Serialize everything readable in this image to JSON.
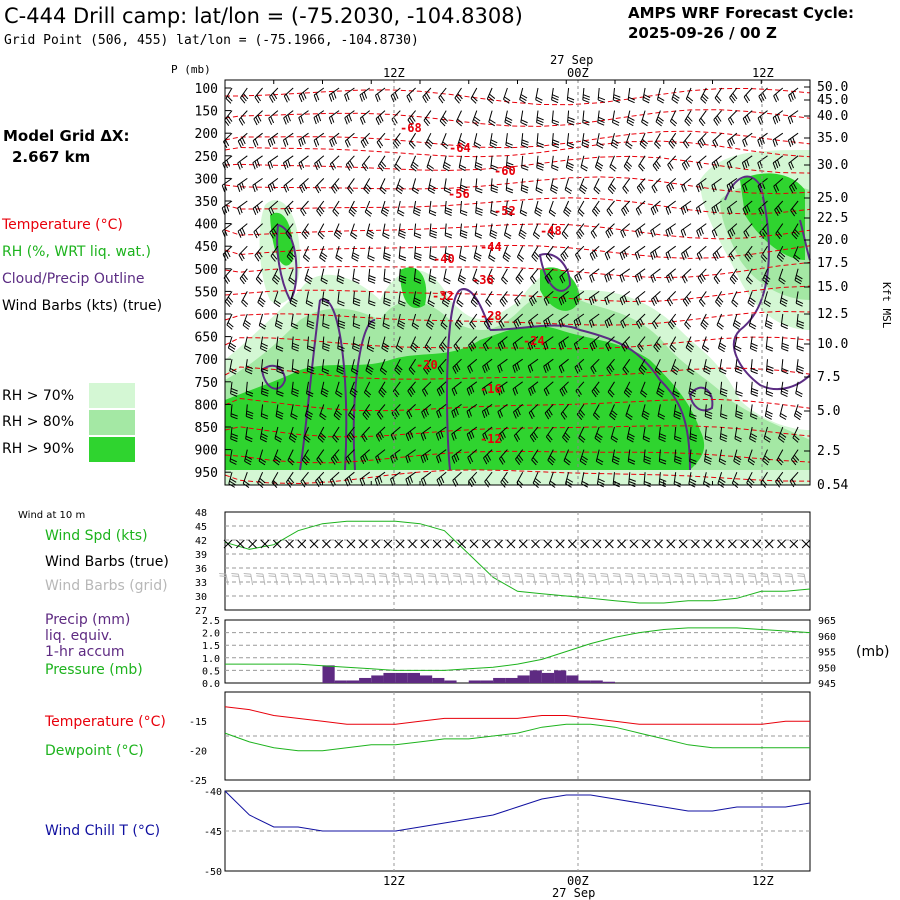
{
  "header": {
    "title": "C-444 Drill camp:  lat/lon = (-75.2030, -104.8308)",
    "subtitle": "Grid Point (506, 455) lat/lon = (-75.1966, -104.8730)",
    "cycle_line1": "AMPS WRF Forecast Cycle:",
    "cycle_line2": "2025-09-26 / 00  Z"
  },
  "left": {
    "grid_label": "Model Grid ΔX:",
    "grid_value": "2.667 km",
    "temperature": "Temperature (°C)",
    "rh": "RH (%, WRT liq. wat.)",
    "cloud": "Cloud/Precip Outline",
    "wind_barbs": "Wind Barbs (kts) (true)",
    "rh70": "RH > 70%",
    "rh80": "RH > 80%",
    "rh90": "RH > 90%",
    "wind10": "Wind at 10 m",
    "wind_spd": "Wind Spd (kts)",
    "barbs_true": "Wind Barbs (true)",
    "barbs_grid": "Wind Barbs (grid)",
    "precip1": "Precip (mm)",
    "precip2": "liq. equiv.",
    "precip3": "1-hr accum",
    "pressure": "Pressure (mb)",
    "temp2": "Temperature (°C)",
    "dewpoint": "Dewpoint (°C)",
    "windchill": "Wind Chill T (°C)"
  },
  "colors": {
    "temp": "#e8000b",
    "rh": "#1db31d",
    "cloud": "#5b2c83",
    "rh70": "#d4f7d4",
    "rh80": "#a4e8a4",
    "rh90": "#2fd42f",
    "windchill": "#1010a0",
    "precip": "#5e2a82"
  },
  "time_axis": {
    "ticks": [
      "12Z",
      "00Z",
      "12Z"
    ],
    "date_top": "27  Sep",
    "date_bottom": "27  Sep"
  },
  "chart_data": [
    {
      "type": "heatmap",
      "name": "Cross-section",
      "y_axis_label": "P (mb)",
      "pressure_levels": [
        "100",
        "150",
        "200",
        "250",
        "300",
        "350",
        "400",
        "450",
        "500",
        "550",
        "600",
        "650",
        "700",
        "750",
        "800",
        "850",
        "900",
        "950"
      ],
      "right_axis_label": "Kft MSL",
      "height_ticks": [
        "50.0",
        "45.0",
        "40.0",
        "35.0",
        "30.0",
        "25.0",
        "22.5",
        "20.0",
        "17.5",
        "15.0",
        "12.5",
        "10.0",
        "7.5",
        "5.0",
        "2.5",
        "0.54"
      ],
      "temperature_contours": [
        {
          "label": "-68",
          "p": "~190 mb"
        },
        {
          "label": "-64",
          "p": "~240 mb"
        },
        {
          "label": "-60",
          "p": "~285 mb"
        },
        {
          "label": "-56",
          "p": "~330 mb"
        },
        {
          "label": "-52",
          "p": "~360 mb"
        },
        {
          "label": "-48",
          "p": "~410 mb"
        },
        {
          "label": "-44",
          "p": "~435 mb"
        },
        {
          "label": "-40",
          "p": "~460 mb"
        },
        {
          "label": "-36",
          "p": "~500 mb"
        },
        {
          "label": "-32",
          "p": "~540 mb"
        },
        {
          "label": "-28",
          "p": "~580 mb"
        },
        {
          "label": "-24",
          "p": "~640 mb"
        },
        {
          "label": "-20",
          "p": "~710 mb"
        },
        {
          "label": "-16",
          "p": "~780 mb"
        },
        {
          "label": "-12",
          "p": "~850 mb"
        }
      ]
    },
    {
      "type": "line",
      "name": "Wind at 10 m",
      "y_ticks": [
        "48",
        "45",
        "42",
        "39",
        "36",
        "33",
        "30",
        "27"
      ],
      "ylim": [
        27,
        48
      ],
      "x": [
        0,
        2,
        4,
        6,
        8,
        10,
        12,
        14,
        16,
        18,
        20,
        22,
        24,
        26,
        28,
        30,
        32,
        34,
        36,
        38,
        40,
        42,
        44,
        46,
        48
      ],
      "values": [
        41.5,
        40,
        41,
        44,
        45.5,
        46,
        46,
        46,
        45.5,
        44,
        39,
        34,
        31,
        30.5,
        30,
        29.5,
        29,
        28.5,
        28.5,
        29,
        29,
        29.5,
        31,
        31,
        31.5
      ]
    },
    {
      "type": "bar+line",
      "name": "Precip / Pressure",
      "y_ticks_left": [
        "2.5",
        "2.0",
        "1.5",
        "1.0",
        "0.5",
        "0.0"
      ],
      "y_ticks_right": [
        "965",
        "960",
        "955",
        "950",
        "945"
      ],
      "right_unit": "(mb)",
      "precip_mm": [
        0,
        0,
        0,
        0,
        0,
        0,
        0,
        0.0,
        0.7,
        0.1,
        0.1,
        0.2,
        0.3,
        0.4,
        0.4,
        0.4,
        0.3,
        0.2,
        0.1,
        0,
        0.1,
        0.1,
        0.2,
        0.2,
        0.3,
        0.5,
        0.4,
        0.5,
        0.3,
        0.1,
        0.1,
        0.05,
        0,
        0,
        0,
        0,
        0,
        0,
        0,
        0,
        0,
        0,
        0,
        0,
        0,
        0,
        0,
        0
      ],
      "pressure_mb": [
        951,
        951,
        951,
        951,
        950.5,
        950,
        949.5,
        949,
        949,
        949,
        949.5,
        950,
        951,
        952.5,
        955,
        957.5,
        959.5,
        961,
        962,
        962.5,
        962.5,
        962.5,
        962,
        961.5,
        961
      ]
    },
    {
      "type": "line",
      "name": "Temperature / Dewpoint",
      "y_ticks": [
        "-15",
        "-20",
        "-25"
      ],
      "ylim": [
        -25,
        -10
      ],
      "temperature": [
        -12.5,
        -13,
        -14,
        -14.5,
        -15,
        -15.5,
        -15.5,
        -15.5,
        -15,
        -14.5,
        -14.5,
        -14.5,
        -14.5,
        -14,
        -14,
        -14.5,
        -15,
        -15.5,
        -15.5,
        -15.5,
        -15.5,
        -15.5,
        -15.5,
        -15,
        -15
      ],
      "dewpoint": [
        -17,
        -18.5,
        -19.5,
        -20,
        -20,
        -19.5,
        -19,
        -19,
        -18.5,
        -18,
        -18,
        -17.5,
        -17,
        -16,
        -15.5,
        -15.5,
        -16,
        -17,
        -18,
        -19,
        -19.5,
        -19.5,
        -19.5,
        -19.5,
        -19.5
      ]
    },
    {
      "type": "line",
      "name": "Wind Chill",
      "y_ticks": [
        "-40",
        "-45",
        "-50"
      ],
      "ylim": [
        -50,
        -40
      ],
      "values": [
        -40,
        -43,
        -44.5,
        -44.5,
        -45,
        -45,
        -45,
        -45,
        -44.5,
        -44,
        -43.5,
        -43,
        -42,
        -41,
        -40.5,
        -40.5,
        -41,
        -41.5,
        -42,
        -42.5,
        -42.5,
        -42,
        -42,
        -42,
        -41.5
      ]
    }
  ]
}
